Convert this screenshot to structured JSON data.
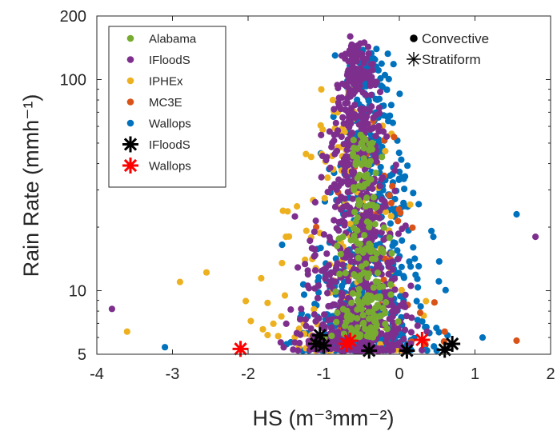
{
  "chart_data": {
    "type": "scatter",
    "xlabel": "HS (m⁻³mm⁻²)",
    "ylabel": "Rain Rate (mmh⁻¹)",
    "x_axis": {
      "scale": "linear",
      "range": [
        -4,
        2
      ],
      "ticks": [
        -4,
        -3,
        -2,
        -1,
        0,
        1,
        2
      ]
    },
    "y_axis": {
      "scale": "log",
      "range": [
        5,
        200
      ],
      "tick_values": [
        5,
        10,
        100,
        200
      ],
      "tick_labels": [
        "5",
        "10",
        "100",
        "200"
      ]
    },
    "grid": false,
    "legend_position": "top-left",
    "marker_legend": {
      "position": "top-right",
      "entries": [
        {
          "marker": "dot",
          "label": "Convective"
        },
        {
          "marker": "asterisk",
          "label": "Stratiform"
        }
      ]
    },
    "series": [
      {
        "name": "Alabama",
        "marker": "dot",
        "color": "#77ac30",
        "count": 200,
        "points": [
          [
            -0.5,
            13
          ],
          [
            -0.4,
            20
          ],
          [
            -0.3,
            15
          ],
          [
            -0.6,
            30
          ],
          [
            -0.5,
            40
          ],
          [
            -0.4,
            12
          ],
          [
            -0.55,
            9
          ],
          [
            -0.3,
            25
          ]
        ]
      },
      {
        "name": "IFloodS",
        "marker": "dot",
        "color": "#7e2f8e",
        "count": 850,
        "points": [
          [
            -3.8,
            8.2
          ],
          [
            -0.65,
            160
          ],
          [
            1.8,
            18
          ],
          [
            -0.6,
            7
          ],
          [
            -0.5,
            50
          ],
          [
            -0.7,
            25
          ]
        ]
      },
      {
        "name": "IPHEx",
        "marker": "dot",
        "color": "#edb120",
        "count": 160,
        "points": [
          [
            -3.6,
            6.4
          ],
          [
            -2.9,
            11
          ],
          [
            -2.55,
            12.2
          ],
          [
            -1.5,
            18
          ],
          [
            -0.35,
            60
          ]
        ]
      },
      {
        "name": "MC3E",
        "marker": "dot",
        "color": "#d95319",
        "count": 60,
        "points": [
          [
            -1.1,
            20
          ],
          [
            0.6,
            6.4
          ],
          [
            1.55,
            5.8
          ],
          [
            -0.2,
            35
          ]
        ]
      },
      {
        "name": "Wallops",
        "marker": "dot",
        "color": "#0072bd",
        "count": 520,
        "points": [
          [
            -3.1,
            5.4
          ],
          [
            -0.85,
            130
          ],
          [
            1.55,
            23
          ],
          [
            0.45,
            18
          ],
          [
            1.1,
            6
          ]
        ]
      },
      {
        "name": "IFloodS",
        "marker": "asterisk",
        "color": "#000000",
        "points": [
          [
            -1.1,
            5.6
          ],
          [
            -1.05,
            6.15
          ],
          [
            -1.0,
            5.5
          ],
          [
            -0.4,
            5.2
          ],
          [
            0.1,
            5.2
          ],
          [
            0.6,
            5.25
          ],
          [
            0.7,
            5.6
          ]
        ]
      },
      {
        "name": "Wallops",
        "marker": "asterisk",
        "color": "#ff0000",
        "points": [
          [
            -2.1,
            5.3
          ],
          [
            -0.7,
            5.6
          ],
          [
            -0.65,
            5.8
          ],
          [
            0.3,
            5.85
          ]
        ]
      }
    ]
  }
}
